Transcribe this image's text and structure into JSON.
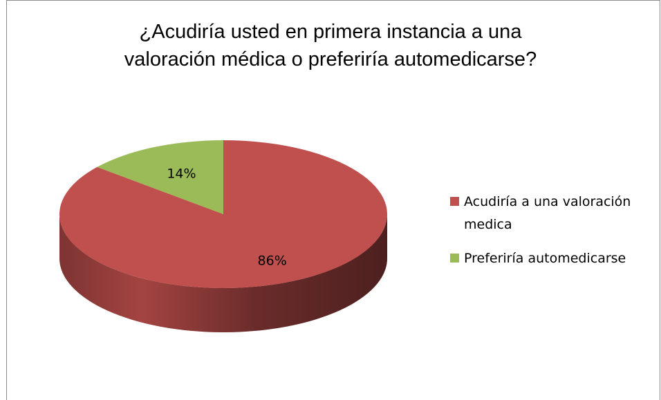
{
  "chart_data": {
    "type": "pie",
    "title": [
      "¿Acudiría usted en primera instancia a una",
      "valoración médica o preferiría automedicarse?"
    ],
    "categories": [
      "Acudiría a una valoración medica",
      "Preferiría automedicarse"
    ],
    "values": [
      86,
      14
    ],
    "value_labels": [
      "86%",
      "14%"
    ],
    "colors": [
      "#c0504d",
      "#9bbb59"
    ],
    "legend": "right"
  }
}
